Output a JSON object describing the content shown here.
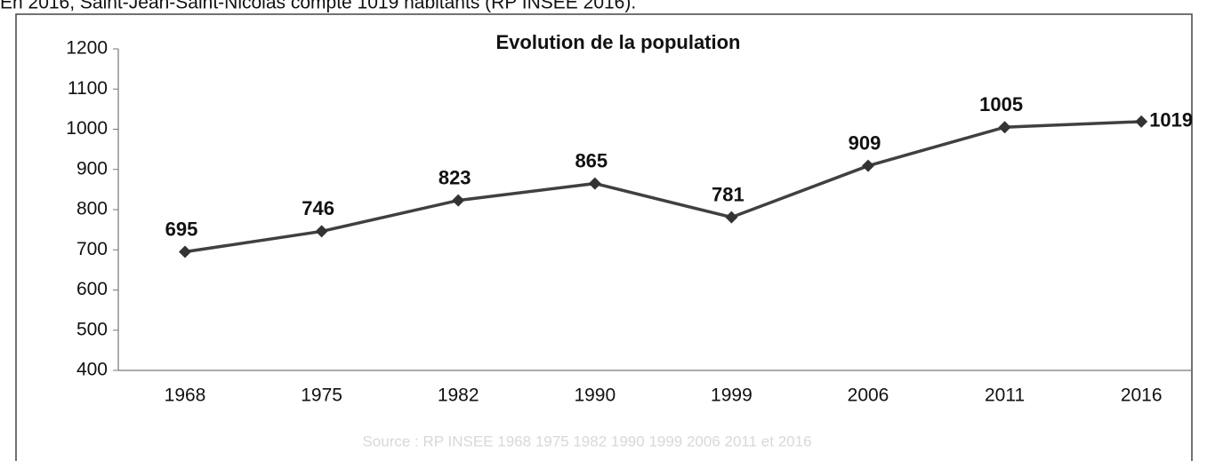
{
  "intro": "En 2016, Saint-Jean-Saint-Nicolas compte 1019 habitants (RP INSEE 2016).",
  "chart_data": {
    "type": "line",
    "title": "Evolution de la population",
    "categories": [
      "1968",
      "1975",
      "1982",
      "1990",
      "1999",
      "2006",
      "2011",
      "2016"
    ],
    "values": [
      695,
      746,
      823,
      865,
      781,
      909,
      1005,
      1019
    ],
    "color": "#404040",
    "ylim": [
      400,
      1200
    ],
    "yticks": [
      400,
      500,
      600,
      700,
      800,
      900,
      1000,
      1100,
      1200
    ],
    "grid": false,
    "source": "Source : RP INSEE 1968 1975 1982 1990 1999 2006 2011 et 2016"
  }
}
